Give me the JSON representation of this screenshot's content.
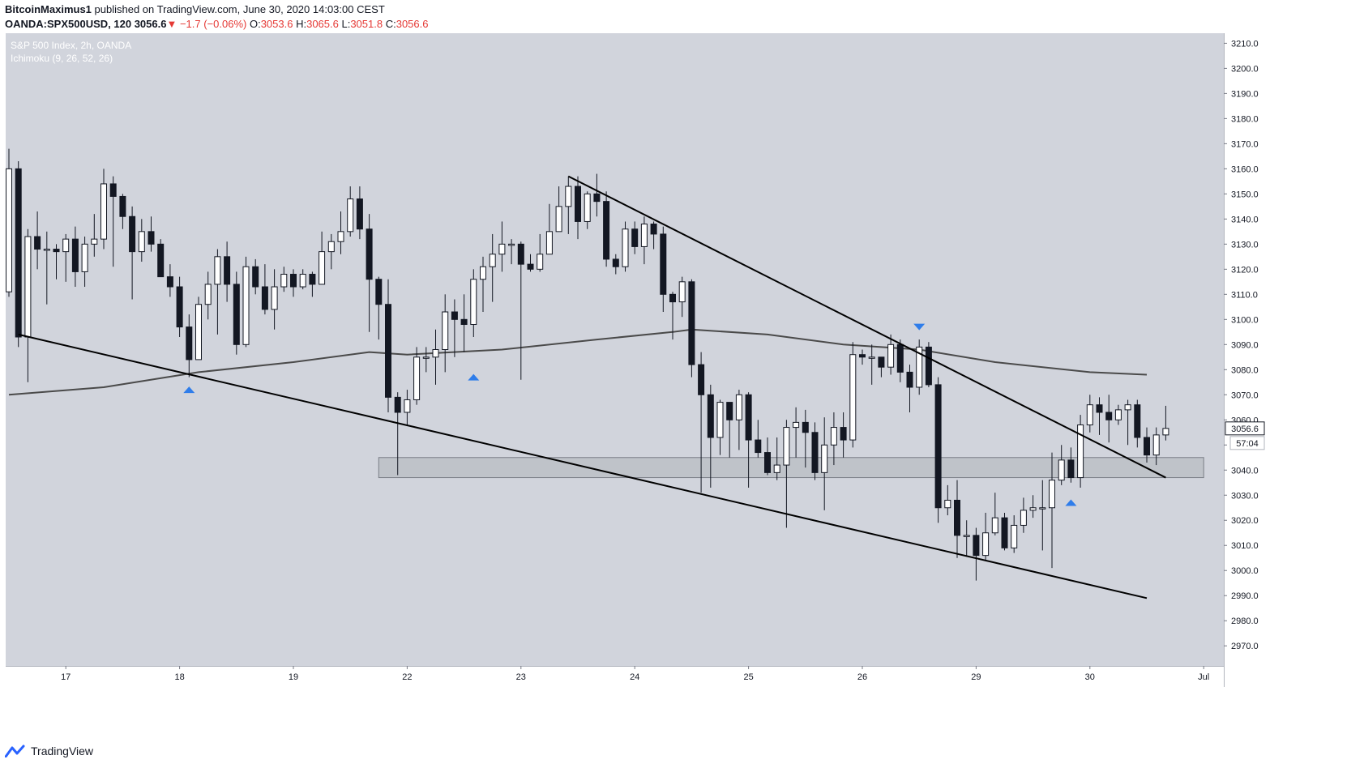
{
  "header": {
    "line1_user": "BitcoinMaximus1",
    "line1_rest": " published on TradingView.com, June 30, 2020 14:03:00 CEST",
    "symbol": "OANDA:SPX500USD, 120",
    "last": "3056.6",
    "change": "−1.7 (−0.06%)",
    "o_label": "O:",
    "o": "3053.6",
    "h_label": "H:",
    "h": "3065.6",
    "l_label": "L:",
    "l": "3051.8",
    "c_label": "C:",
    "c": "3056.6"
  },
  "legend": {
    "title": "S&P 500 Index, 2h, OANDA",
    "indicator": "Ichimoku (9, 26, 52, 26)"
  },
  "price_tag": "3056.6",
  "timer_tag": "57:04",
  "footer": {
    "brand": "TradingView"
  },
  "colors": {
    "plot_bg": "#d1d4dc",
    "up_fill": "#ffffff",
    "down_fill": "#131722",
    "wick": "#131722",
    "trendline": "#000000",
    "ma_line": "#4a4a4a",
    "marker": "#2f7dea",
    "zone_fill": "#bcbfc6",
    "zone_stroke": "#7a7e87"
  },
  "chart_data": {
    "type": "candlestick",
    "title": "S&P 500 Index, 2h, OANDA",
    "ylim": [
      2962,
      3214
    ],
    "y_ticks": [
      2970,
      2980,
      2990,
      3000,
      3010,
      3020,
      3030,
      3040,
      3050,
      3060,
      3070,
      3080,
      3090,
      3100,
      3110,
      3120,
      3130,
      3140,
      3150,
      3160,
      3170,
      3180,
      3190,
      3200,
      3210
    ],
    "x_ticks": [
      {
        "i": 6,
        "label": "17"
      },
      {
        "i": 18,
        "label": "18"
      },
      {
        "i": 30,
        "label": "19"
      },
      {
        "i": 42,
        "label": "22"
      },
      {
        "i": 54,
        "label": "23"
      },
      {
        "i": 66,
        "label": "24"
      },
      {
        "i": 78,
        "label": "25"
      },
      {
        "i": 90,
        "label": "26"
      },
      {
        "i": 102,
        "label": "29"
      },
      {
        "i": 114,
        "label": "30"
      },
      {
        "i": 126,
        "label": "Jul"
      }
    ],
    "candles": [
      [
        3111,
        3160,
        3168,
        3109
      ],
      [
        3160,
        3093,
        3163,
        3089
      ],
      [
        3093,
        3133,
        3136,
        3075
      ],
      [
        3133,
        3128,
        3143,
        3120
      ],
      [
        3128,
        3128,
        3135,
        3106
      ],
      [
        3128,
        3127,
        3130,
        3116
      ],
      [
        3127,
        3132,
        3134,
        3115
      ],
      [
        3132,
        3119,
        3137,
        3113
      ],
      [
        3119,
        3130,
        3133,
        3113
      ],
      [
        3130,
        3132,
        3142,
        3125
      ],
      [
        3132,
        3154,
        3160,
        3128
      ],
      [
        3154,
        3149,
        3157,
        3121
      ],
      [
        3149,
        3141,
        3150,
        3136
      ],
      [
        3141,
        3127,
        3145,
        3108
      ],
      [
        3127,
        3135,
        3140,
        3123
      ],
      [
        3135,
        3130,
        3141,
        3127
      ],
      [
        3130,
        3117,
        3132,
        3119
      ],
      [
        3117,
        3113,
        3122,
        3109
      ],
      [
        3113,
        3097,
        3117,
        3093
      ],
      [
        3097,
        3084,
        3102,
        3077
      ],
      [
        3084,
        3106,
        3109,
        3085
      ],
      [
        3106,
        3114,
        3119,
        3100
      ],
      [
        3114,
        3125,
        3128,
        3094
      ],
      [
        3125,
        3114,
        3131,
        3107
      ],
      [
        3114,
        3090,
        3119,
        3086
      ],
      [
        3090,
        3121,
        3125,
        3089
      ],
      [
        3121,
        3113,
        3124,
        3110
      ],
      [
        3113,
        3104,
        3122,
        3102
      ],
      [
        3104,
        3113,
        3120,
        3096
      ],
      [
        3113,
        3118,
        3121,
        3111
      ],
      [
        3118,
        3113,
        3120,
        3109
      ],
      [
        3113,
        3118,
        3120,
        3112
      ],
      [
        3118,
        3114,
        3119,
        3109
      ],
      [
        3114,
        3127,
        3135,
        3115
      ],
      [
        3127,
        3131,
        3134,
        3120
      ],
      [
        3131,
        3135,
        3143,
        3126
      ],
      [
        3135,
        3148,
        3153,
        3133
      ],
      [
        3148,
        3136,
        3153,
        3132
      ],
      [
        3136,
        3116,
        3142,
        3095
      ],
      [
        3116,
        3106,
        3117,
        3092
      ],
      [
        3106,
        3069,
        3116,
        3063
      ],
      [
        3069,
        3063,
        3071,
        3038
      ],
      [
        3063,
        3068,
        3072,
        3058
      ],
      [
        3068,
        3085,
        3089,
        3066
      ],
      [
        3085,
        3085,
        3089,
        3079
      ],
      [
        3085,
        3088,
        3096,
        3074
      ],
      [
        3088,
        3103,
        3110,
        3079
      ],
      [
        3103,
        3100,
        3108,
        3085
      ],
      [
        3100,
        3098,
        3110,
        3087
      ],
      [
        3098,
        3116,
        3120,
        3093
      ],
      [
        3116,
        3121,
        3125,
        3103
      ],
      [
        3121,
        3126,
        3134,
        3107
      ],
      [
        3126,
        3130,
        3139,
        3119
      ],
      [
        3130,
        3130,
        3132,
        3122
      ],
      [
        3130,
        3122,
        3131,
        3076
      ],
      [
        3122,
        3120,
        3126,
        3119
      ],
      [
        3120,
        3126,
        3134,
        3119
      ],
      [
        3126,
        3135,
        3146,
        3126
      ],
      [
        3135,
        3145,
        3153,
        3137
      ],
      [
        3145,
        3153,
        3157,
        3134
      ],
      [
        3153,
        3139,
        3157,
        3132
      ],
      [
        3139,
        3150,
        3151,
        3136
      ],
      [
        3150,
        3147,
        3158,
        3141
      ],
      [
        3147,
        3124,
        3151,
        3121
      ],
      [
        3124,
        3121,
        3126,
        3118
      ],
      [
        3121,
        3136,
        3139,
        3119
      ],
      [
        3136,
        3129,
        3139,
        3126
      ],
      [
        3129,
        3138,
        3141,
        3122
      ],
      [
        3138,
        3134,
        3139,
        3128
      ],
      [
        3134,
        3110,
        3137,
        3103
      ],
      [
        3110,
        3107,
        3111,
        3092
      ],
      [
        3107,
        3115,
        3117,
        3101
      ],
      [
        3115,
        3082,
        3116,
        3077
      ],
      [
        3082,
        3070,
        3087,
        3031
      ],
      [
        3070,
        3053,
        3074,
        3033
      ],
      [
        3053,
        3067,
        3068,
        3046
      ],
      [
        3067,
        3060,
        3067,
        3045
      ],
      [
        3060,
        3070,
        3072,
        3048
      ],
      [
        3070,
        3052,
        3071,
        3033
      ],
      [
        3052,
        3047,
        3060,
        3045
      ],
      [
        3047,
        3039,
        3053,
        3038
      ],
      [
        3039,
        3042,
        3053,
        3036
      ],
      [
        3042,
        3057,
        3060,
        3017
      ],
      [
        3057,
        3059,
        3065,
        3045
      ],
      [
        3059,
        3055,
        3064,
        3041
      ],
      [
        3055,
        3039,
        3059,
        3036
      ],
      [
        3039,
        3050,
        3061,
        3024
      ],
      [
        3050,
        3057,
        3063,
        3042
      ],
      [
        3057,
        3052,
        3063,
        3045
      ],
      [
        3052,
        3086,
        3091,
        3049
      ],
      [
        3086,
        3085,
        3088,
        3082
      ],
      [
        3085,
        3085,
        3090,
        3074
      ],
      [
        3085,
        3081,
        3084,
        3077
      ],
      [
        3081,
        3090,
        3094,
        3078
      ],
      [
        3090,
        3079,
        3092,
        3075
      ],
      [
        3079,
        3073,
        3082,
        3063
      ],
      [
        3073,
        3089,
        3092,
        3070
      ],
      [
        3089,
        3074,
        3091,
        3073
      ],
      [
        3074,
        3025,
        3077,
        3019
      ],
      [
        3025,
        3028,
        3034,
        3022
      ],
      [
        3028,
        3014,
        3036,
        3005
      ],
      [
        3014,
        3014,
        3020,
        3006
      ],
      [
        3014,
        3006,
        3017,
        2996
      ],
      [
        3006,
        3015,
        3023,
        3004
      ],
      [
        3015,
        3021,
        3031,
        3014
      ],
      [
        3021,
        3009,
        3023,
        3008
      ],
      [
        3009,
        3018,
        3022,
        3007
      ],
      [
        3018,
        3024,
        3029,
        3015
      ],
      [
        3024,
        3025,
        3030,
        3021
      ],
      [
        3025,
        3025,
        3036,
        3008
      ],
      [
        3025,
        3036,
        3047,
        3001
      ],
      [
        3036,
        3044,
        3050,
        3034
      ],
      [
        3044,
        3037,
        3049,
        3035
      ],
      [
        3037,
        3058,
        3062,
        3033
      ],
      [
        3058,
        3066,
        3070,
        3055
      ],
      [
        3066,
        3063,
        3069,
        3054
      ],
      [
        3063,
        3060,
        3070,
        3051
      ],
      [
        3060,
        3064,
        3066,
        3058
      ],
      [
        3064,
        3066,
        3068,
        3050
      ],
      [
        3066,
        3053,
        3068,
        3049
      ],
      [
        3053,
        3046,
        3057,
        3043
      ],
      [
        3046,
        3054,
        3057,
        3042
      ],
      [
        3054,
        3056.6,
        3065.6,
        3051.8
      ]
    ],
    "ma_line": [
      [
        0,
        3070
      ],
      [
        10,
        3073
      ],
      [
        20,
        3079
      ],
      [
        30,
        3083
      ],
      [
        38,
        3087
      ],
      [
        42,
        3086
      ],
      [
        52,
        3088
      ],
      [
        62,
        3092
      ],
      [
        70,
        3095
      ],
      [
        72,
        3096
      ],
      [
        80,
        3094
      ],
      [
        88,
        3090
      ],
      [
        96,
        3088
      ],
      [
        104,
        3083
      ],
      [
        114,
        3079
      ],
      [
        120,
        3078
      ]
    ],
    "trendlines": [
      {
        "from": [
          1,
          3094
        ],
        "to": [
          120,
          2989
        ]
      },
      {
        "from": [
          59,
          3157
        ],
        "to": [
          122,
          3037
        ]
      }
    ],
    "zone": {
      "from_i": 39,
      "to_i": 126,
      "y_top": 3045,
      "y_bottom": 3037
    },
    "markers": [
      {
        "i": 19,
        "price": 3072,
        "dir": "up"
      },
      {
        "i": 49,
        "price": 3077,
        "dir": "up"
      },
      {
        "i": 96,
        "price": 3097,
        "dir": "down"
      },
      {
        "i": 112,
        "price": 3027,
        "dir": "up"
      }
    ]
  }
}
